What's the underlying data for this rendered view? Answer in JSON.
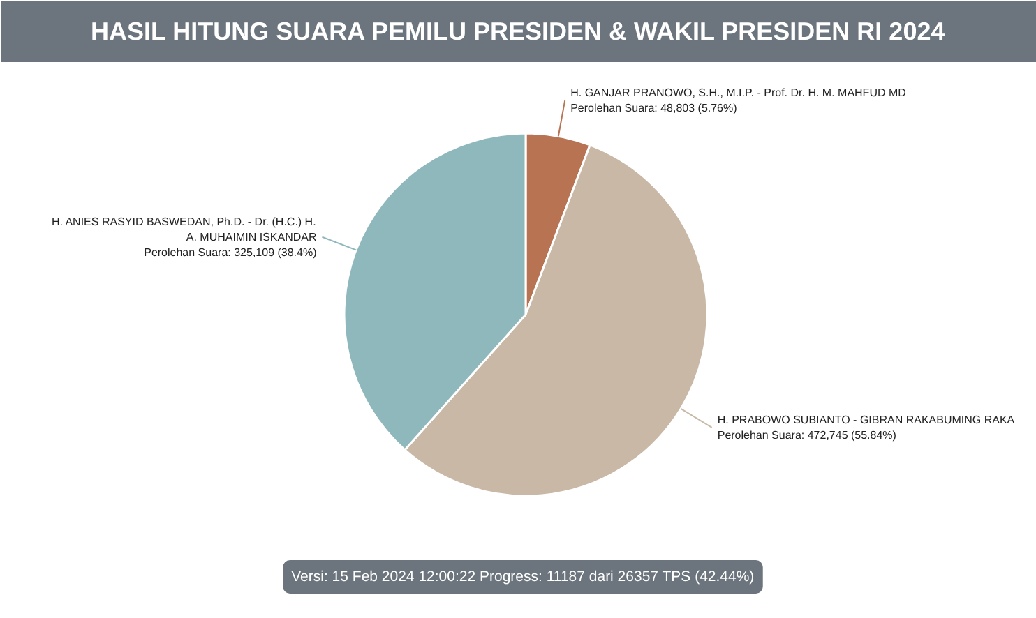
{
  "chart_data": {
    "type": "pie",
    "title": "HASIL HITUNG SUARA PEMILU PRESIDEN & WAKIL PRESIDEN RI 2024",
    "categories": [
      "H. GANJAR PRANOWO, S.H., M.I.P. - Prof. Dr. H. M. MAHFUD MD",
      "H. PRABOWO SUBIANTO - GIBRAN RAKABUMING RAKA",
      "H. ANIES RASYID BASWEDAN, Ph.D. - Dr. (H.C.) H. A. MUHAIMIN ISKANDAR"
    ],
    "values": [
      48803,
      472745,
      325109
    ],
    "colors": [
      "#b87352",
      "#c8b8a5",
      "#8fb8bd"
    ],
    "value_labels": [
      "Perolehan Suara: 48,803 (5.76%)",
      "Perolehan Suara: 472,745 (55.84%)",
      "Perolehan Suara: 325,109 (38.4%)"
    ],
    "legend": false,
    "annotations": [
      "Versi: 15 Feb 2024 12:00:22 Progress: 11187 dari 26357 TPS (42.44%)"
    ]
  }
}
